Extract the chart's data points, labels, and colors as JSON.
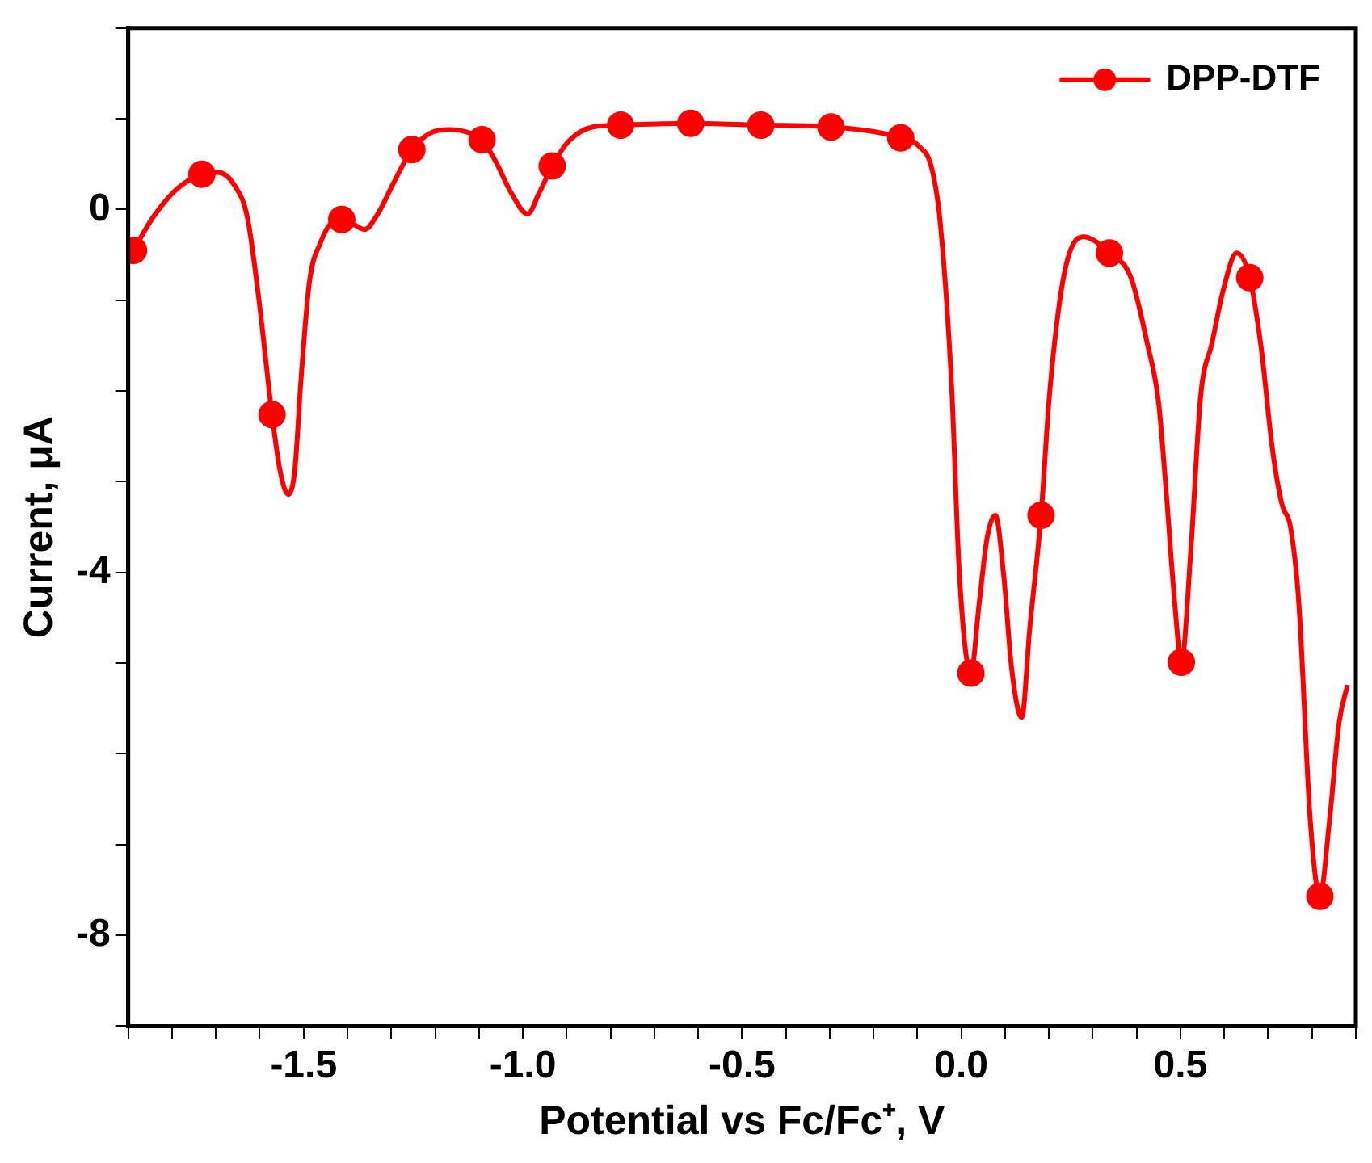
{
  "chart_data": {
    "type": "line",
    "xlabel": "Potential vs Fc/Fc⁺, V",
    "ylabel": "Current, μA",
    "xlim": [
      -1.9,
      0.9
    ],
    "ylim": [
      -9,
      2
    ],
    "xticks": [
      {
        "value": -1.9,
        "label": null
      },
      {
        "value": -1.8,
        "label": null
      },
      {
        "value": -1.7,
        "label": null
      },
      {
        "value": -1.6,
        "label": null
      },
      {
        "value": -1.5,
        "label": "-1.5"
      },
      {
        "value": -1.4,
        "label": null
      },
      {
        "value": -1.3,
        "label": null
      },
      {
        "value": -1.2,
        "label": null
      },
      {
        "value": -1.1,
        "label": null
      },
      {
        "value": -1.0,
        "label": "-1.0"
      },
      {
        "value": -0.9,
        "label": null
      },
      {
        "value": -0.8,
        "label": null
      },
      {
        "value": -0.7,
        "label": null
      },
      {
        "value": -0.6,
        "label": null
      },
      {
        "value": -0.5,
        "label": "-0.5"
      },
      {
        "value": -0.4,
        "label": null
      },
      {
        "value": -0.3,
        "label": null
      },
      {
        "value": -0.2,
        "label": null
      },
      {
        "value": -0.1,
        "label": null
      },
      {
        "value": 0,
        "label": "0.0"
      },
      {
        "value": 0.1,
        "label": null
      },
      {
        "value": 0.2,
        "label": null
      },
      {
        "value": 0.3,
        "label": null
      },
      {
        "value": 0.4,
        "label": null
      },
      {
        "value": 0.5,
        "label": "0.5"
      },
      {
        "value": 0.6,
        "label": null
      },
      {
        "value": 0.7,
        "label": null
      },
      {
        "value": 0.8,
        "label": null
      },
      {
        "value": 0.9,
        "label": null
      }
    ],
    "yticks": [
      {
        "value": -9,
        "label": null
      },
      -8,
      {
        "value": -7,
        "label": null
      },
      {
        "value": -6,
        "label": null
      },
      {
        "value": -5,
        "label": null
      },
      -4,
      {
        "value": -3,
        "label": null
      },
      {
        "value": -2,
        "label": null
      },
      {
        "value": -1,
        "label": null
      },
      0,
      {
        "value": 1,
        "label": null
      },
      {
        "value": 2,
        "label": null
      }
    ],
    "grid": false,
    "legend": "top right",
    "series": [
      {
        "type": "line",
        "color": "#ff0000",
        "marker": "none",
        "x": [
          -1.888,
          -1.844,
          -1.788,
          -1.732,
          -1.695,
          -1.658,
          -1.628,
          -1.602,
          -1.572,
          -1.554,
          -1.535,
          -1.52,
          -1.506,
          -1.487,
          -1.461,
          -1.435,
          -1.413,
          -1.387,
          -1.361,
          -1.331,
          -1.294,
          -1.253,
          -1.212,
          -1.167,
          -1.119,
          -1.093,
          -1.063,
          -1.026,
          -0.989,
          -0.963,
          -0.933,
          -0.896,
          -0.84,
          -0.777,
          -0.617,
          -0.457,
          -0.297,
          -0.138,
          -0.097,
          -0.067,
          -0.048,
          -0.022,
          -0.004,
          0.022,
          0.041,
          0.059,
          0.078,
          0.097,
          0.115,
          0.138,
          0.156,
          0.182,
          0.201,
          0.227,
          0.249,
          0.279,
          0.338,
          0.387,
          0.424,
          0.45,
          0.468,
          0.487,
          0.502,
          0.524,
          0.546,
          0.572,
          0.599,
          0.628,
          0.658,
          0.684,
          0.71,
          0.732,
          0.751,
          0.77,
          0.796,
          0.818,
          0.84,
          0.862,
          0.881
        ],
        "values": [
          -0.45,
          -0.09,
          0.23,
          0.39,
          0.41,
          0.27,
          -0.09,
          -0.99,
          -2.26,
          -2.87,
          -3.14,
          -2.87,
          -1.88,
          -0.81,
          -0.36,
          -0.14,
          -0.11,
          -0.16,
          -0.22,
          -0.05,
          0.3,
          0.66,
          0.84,
          0.88,
          0.84,
          0.77,
          0.54,
          0.18,
          -0.05,
          0.18,
          0.48,
          0.75,
          0.91,
          0.93,
          0.95,
          0.93,
          0.91,
          0.79,
          0.7,
          0.45,
          -0.14,
          -1.94,
          -4.04,
          -5.11,
          -4.34,
          -3.62,
          -3.37,
          -4.04,
          -5.06,
          -5.6,
          -4.63,
          -3.37,
          -2.06,
          -0.93,
          -0.45,
          -0.3,
          -0.48,
          -0.75,
          -1.47,
          -2.12,
          -3.14,
          -4.34,
          -4.99,
          -3.73,
          -2.06,
          -1.47,
          -0.86,
          -0.48,
          -0.75,
          -1.52,
          -2.65,
          -3.26,
          -3.5,
          -4.34,
          -6.73,
          -7.57,
          -6.73,
          -5.65,
          -5.24
        ]
      },
      {
        "type": "scatter",
        "name": "DPP-DTF",
        "color": "#ff0000",
        "marker": "circle",
        "x": [
          -1.888,
          -1.732,
          -1.572,
          -1.413,
          -1.253,
          -1.093,
          -0.933,
          -0.777,
          -0.617,
          -0.457,
          -0.297,
          -0.138,
          0.022,
          0.182,
          0.338,
          0.502,
          0.658,
          0.818
        ],
        "values": [
          -0.45,
          0.39,
          -2.26,
          -0.11,
          0.66,
          0.77,
          0.48,
          0.93,
          0.95,
          0.93,
          0.91,
          0.79,
          -5.11,
          -3.37,
          -0.48,
          -4.99,
          -0.75,
          -7.57
        ]
      }
    ]
  }
}
